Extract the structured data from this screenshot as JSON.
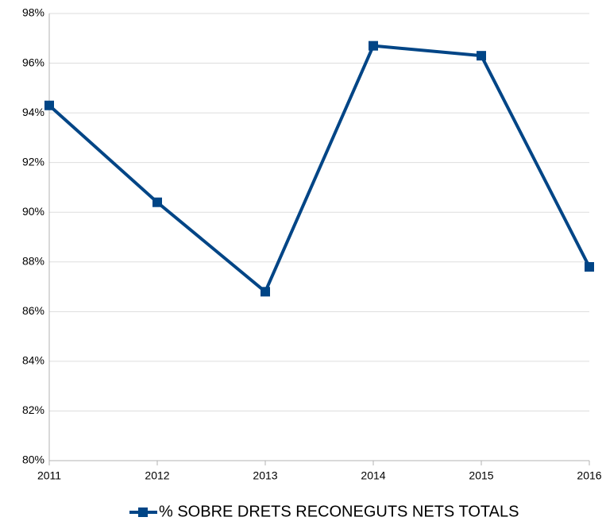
{
  "chart_data": {
    "type": "line",
    "categories": [
      "2011",
      "2012",
      "2013",
      "2014",
      "2015",
      "2016"
    ],
    "series": [
      {
        "name": "% SOBRE DRETS RECONEGUTS NETS TOTALS",
        "color": "#004586",
        "values": [
          94.3,
          90.4,
          86.8,
          96.7,
          96.3,
          87.8
        ]
      }
    ],
    "ylim": [
      80,
      98
    ],
    "yticks": [
      {
        "value": 80,
        "label": "80%"
      },
      {
        "value": 82,
        "label": "82%"
      },
      {
        "value": 84,
        "label": "84%"
      },
      {
        "value": 86,
        "label": "86%"
      },
      {
        "value": 88,
        "label": "88%"
      },
      {
        "value": 90,
        "label": "90%"
      },
      {
        "value": 92,
        "label": "92%"
      },
      {
        "value": 94,
        "label": "94%"
      },
      {
        "value": 96,
        "label": "96%"
      },
      {
        "value": 98,
        "label": "98%"
      }
    ],
    "grid": true,
    "legend": "bottom"
  }
}
